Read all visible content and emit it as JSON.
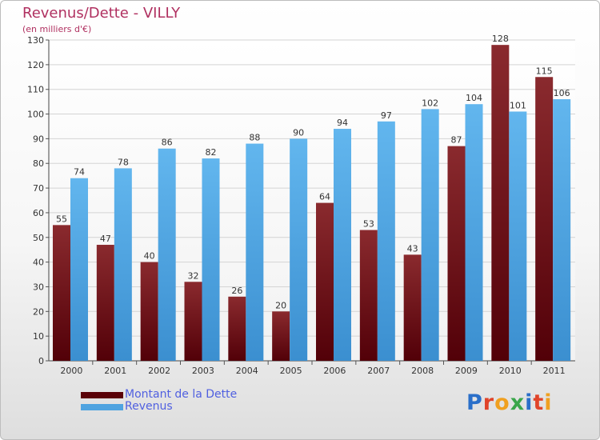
{
  "header": {
    "title": "Revenus/Dette - VILLY",
    "subtitle": "(en milliers d'€)"
  },
  "colors": {
    "dette": "#7a1e22",
    "dette_dark": "#4a0005",
    "revenus": "#5aaee6",
    "revenus_dark": "#2f7fc0",
    "title": "#b03060",
    "legend_text": "#5060e0"
  },
  "legend": {
    "items": [
      {
        "label": "Montant de la Dette",
        "color": "#6b0a10"
      },
      {
        "label": "Revenus",
        "color": "#4fa3e0"
      }
    ]
  },
  "logo": {
    "text": "Proxiti",
    "letters": [
      {
        "ch": "P",
        "color": "#2a6fc9"
      },
      {
        "ch": "r",
        "color": "#e0442a"
      },
      {
        "ch": "o",
        "color": "#f0a020"
      },
      {
        "ch": "x",
        "color": "#3aa64a"
      },
      {
        "ch": "i",
        "color": "#2a6fc9"
      },
      {
        "ch": "t",
        "color": "#e0442a"
      },
      {
        "ch": "i",
        "color": "#f0a020"
      }
    ]
  },
  "chart_data": {
    "type": "bar",
    "title": "Revenus/Dette - VILLY",
    "subtitle": "(en milliers d'€)",
    "xlabel": "",
    "ylabel": "",
    "ylim": [
      0,
      130
    ],
    "yticks": [
      0,
      10,
      20,
      30,
      40,
      50,
      60,
      70,
      80,
      90,
      100,
      110,
      120,
      130
    ],
    "grid": true,
    "legend_position": "bottom-left",
    "categories": [
      "2000",
      "2001",
      "2002",
      "2003",
      "2004",
      "2005",
      "2006",
      "2007",
      "2008",
      "2009",
      "2010",
      "2011"
    ],
    "series": [
      {
        "name": "Montant de la Dette",
        "values": [
          55,
          47,
          40,
          32,
          26,
          20,
          64,
          53,
          43,
          87,
          128,
          115
        ]
      },
      {
        "name": "Revenus",
        "values": [
          74,
          78,
          86,
          82,
          88,
          90,
          94,
          97,
          102,
          104,
          101,
          106
        ]
      }
    ]
  }
}
